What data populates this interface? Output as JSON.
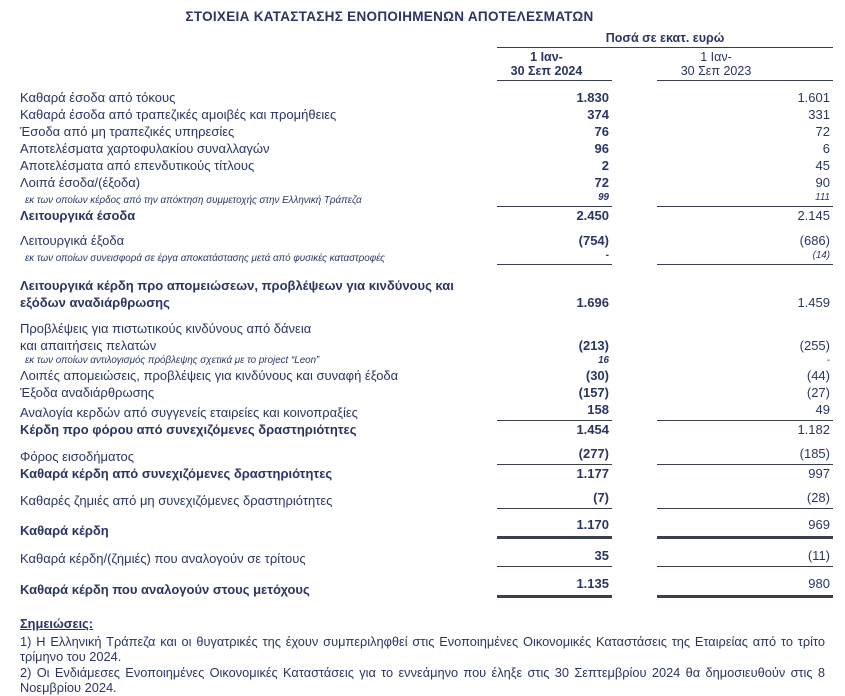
{
  "title": "ΣΤΟΙΧΕΙΑ ΚΑΤΑΣΤΑΣΗΣ ΕΝΟΠΟΙΗΜΕΝΩΝ ΑΠΟΤΕΛΕΣΜΑΤΩΝ",
  "colors": {
    "text": "#2a3564",
    "rule": "#3a3f4c"
  },
  "table": {
    "units_label": "Ποσά σε εκατ. ευρώ",
    "columns": [
      {
        "line1": "1 Ιαν-",
        "line2": "30 Σεπ 2024",
        "bold": true
      },
      {
        "line1": "1 Ιαν-",
        "line2": "30 Σεπ 2023",
        "bold": false
      }
    ],
    "rows": [
      {
        "label": "Καθαρά έσοδα από τόκους",
        "v2024": "1.830",
        "v2023": "1.601",
        "style": "normal"
      },
      {
        "label": "Καθαρά έσοδα από τραπεζικές αμοιβές και προμήθειες",
        "v2024": "374",
        "v2023": "331",
        "style": "normal"
      },
      {
        "label": "Έσοδα από μη τραπεζικές υπηρεσίες",
        "v2024": "76",
        "v2023": "72",
        "style": "normal"
      },
      {
        "label": "Αποτελέσματα χαρτοφυλακίου συναλλαγών",
        "v2024": "96",
        "v2023": "6",
        "style": "normal"
      },
      {
        "label": "Αποτελέσματα από επενδυτικούς τίτλους",
        "v2024": "2",
        "v2023": "45",
        "style": "normal"
      },
      {
        "label": "Λοιπά έσοδα/(έξοδα)",
        "v2024": "72",
        "v2023": "90",
        "style": "normal"
      },
      {
        "label": "εκ των οποίων κέρδος από την απόκτηση συμμετοχής στην Ελληνική Τράπεζα",
        "v2024": "99",
        "v2023": "111",
        "style": "italic",
        "rule_below": "thin"
      },
      {
        "label": "Λειτουργικά έσοδα",
        "v2024": "2.450",
        "v2023": "2.145",
        "style": "bold"
      },
      {
        "label": "Λειτουργικά έξοδα",
        "v2024": "(754)",
        "v2023": "(686)",
        "style": "normal",
        "gap_above": 8
      },
      {
        "label": "εκ των οποίων συνεισφορά σε έργα αποκατάστασης μετά από φυσικές καταστροφές",
        "v2024": "-",
        "v2023": "(14)",
        "style": "italic",
        "rule_below": "thin"
      },
      {
        "label": "Λειτουργικά κέρδη προ απομειώσεων, προβλέψεων για κινδύνους και\nεξόδων αναδιάρθρωσης",
        "v2024": "1.696",
        "v2023": "1.459",
        "style": "bold",
        "gap_above": 12
      },
      {
        "label": "Προβλέψεις για πιστωτικούς κινδύνους από δάνεια\nκαι απαιτήσεις πελατών",
        "v2024": "(213)",
        "v2023": "(255)",
        "style": "normal",
        "gap_above": 9
      },
      {
        "label": "εκ των οποίων αντιλογισμός πρόβλεψης σχετικά με το project “Leon”",
        "v2024": "16",
        "v2023": "-",
        "style": "italic"
      },
      {
        "label": "Λοιπές απομειώσεις, προβλέψεις για κινδύνους και συναφή έξοδα",
        "v2024": "(30)",
        "v2023": "(44)",
        "style": "normal"
      },
      {
        "label": "Έξοδα αναδιάρθρωσης",
        "v2024": "(157)",
        "v2023": "(27)",
        "style": "normal"
      },
      {
        "label": "Αναλογία κερδών από συγγενείς εταιρείες και κοινοπραξίες",
        "v2024": "158",
        "v2023": "49",
        "style": "normal",
        "rule_below": "thin"
      },
      {
        "label": "Κέρδη προ φόρου από συνεχιζόμενες δραστηριότητες",
        "v2024": "1.454",
        "v2023": "1.182",
        "style": "bold"
      },
      {
        "label": "Φόρος εισοδήματος",
        "v2024": "(277)",
        "v2023": "(185)",
        "style": "normal",
        "gap_above": 7,
        "rule_below": "thin"
      },
      {
        "label": "Καθαρά κέρδη από συνεχιζόμενες δραστηριότητες",
        "v2024": "1.177",
        "v2023": "997",
        "style": "bold"
      },
      {
        "label": "Καθαρές ζημιές από μη συνεχιζόμενες δραστηριότητες",
        "v2024": "(7)",
        "v2023": "(28)",
        "style": "normal",
        "gap_above": 7,
        "rule_below": "thin"
      },
      {
        "label": "Καθαρά κέρδη",
        "v2024": "1.170",
        "v2023": "969",
        "style": "bold",
        "gap_above": 7,
        "rule_below": "thick"
      },
      {
        "label": "Καθαρά κέρδη/(ζημιές) που αναλογούν σε τρίτους",
        "v2024": "35",
        "v2023": "(11)",
        "style": "normal",
        "gap_above": 8,
        "rule_below": "thin"
      },
      {
        "label": "Καθαρά κέρδη που αναλογούν στους μετόχους",
        "v2024": "1.135",
        "v2023": "980",
        "style": "bold",
        "gap_above": 8,
        "rule_below": "thick"
      }
    ]
  },
  "notes": {
    "heading": "Σημειώσεις:",
    "items": [
      "1)  Η Ελληνική Τράπεζα και οι θυγατρικές της έχουν συμπεριληφθεί στις Ενοποιημένες Οικονομικές Καταστάσεις της Εταιρείας από το τρίτο τρίμηνο του 2024.",
      "2)  Οι Ενδιάμεσες Ενοποιημένες Οικονομικές Καταστάσεις για το εννεάμηνο που έληξε στις 30 Σεπτεμβρίου 2024 θα δημοσιευθούν στις 8 Νοεμβρίου 2024."
    ]
  }
}
